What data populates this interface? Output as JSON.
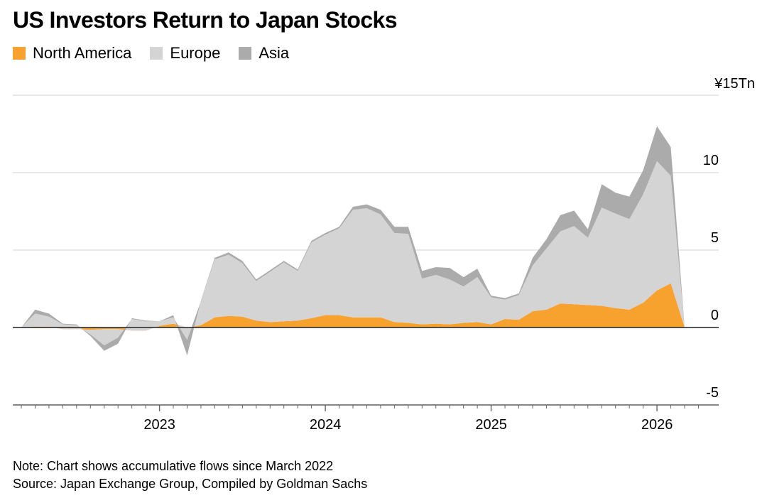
{
  "title": "US Investors Return to Japan Stocks",
  "footer": {
    "note": "Note: Chart shows accumulative flows since March 2022",
    "source": "Source: Japan Exchange Group, Compiled by Goldman Sachs"
  },
  "colors": {
    "north_america": "#F7A12F",
    "europe": "#D4D4D4",
    "asia": "#ABABAB"
  },
  "chart_data": {
    "type": "area",
    "stacked": true,
    "title": "US Investors Return to Japan Stocks",
    "y_unit_label": "¥15Tn",
    "ylim": [
      -5,
      15
    ],
    "y_ticks": [
      {
        "value": 15,
        "label": "¥15Tn"
      },
      {
        "value": 10,
        "label": "10"
      },
      {
        "value": 5,
        "label": "5"
      },
      {
        "value": 0,
        "label": "0"
      },
      {
        "value": -5,
        "label": "-5"
      }
    ],
    "xlim": [
      "2022-03",
      "2026-04"
    ],
    "x_tick_labels": [
      "2023",
      "2024",
      "2025",
      "2026"
    ],
    "legend_position": "top-left",
    "grid": "horizontal",
    "x": [
      "2022-03",
      "2022-04",
      "2022-05",
      "2022-06",
      "2022-07",
      "2022-08",
      "2022-09",
      "2022-10",
      "2022-11",
      "2022-12",
      "2023-01",
      "2023-02",
      "2023-03",
      "2023-04",
      "2023-05",
      "2023-06",
      "2023-07",
      "2023-08",
      "2023-09",
      "2023-10",
      "2023-11",
      "2023-12",
      "2024-01",
      "2024-02",
      "2024-03",
      "2024-04",
      "2024-05",
      "2024-06",
      "2024-07",
      "2024-08",
      "2024-09",
      "2024-10",
      "2024-11",
      "2024-12",
      "2025-01",
      "2025-02",
      "2025-03",
      "2025-04",
      "2025-05",
      "2025-06",
      "2025-07",
      "2025-08",
      "2025-09",
      "2025-10",
      "2025-11",
      "2025-12",
      "2026-01",
      "2026-02",
      "2026-03"
    ],
    "series": [
      {
        "name": "North America",
        "color_key": "north_america",
        "values": [
          0,
          0.05,
          0.05,
          -0.1,
          -0.1,
          -0.15,
          -0.1,
          -0.1,
          -0.2,
          -0.2,
          0.1,
          0.25,
          0,
          0.15,
          0.65,
          0.75,
          0.7,
          0.45,
          0.35,
          0.4,
          0.45,
          0.6,
          0.8,
          0.8,
          0.65,
          0.65,
          0.65,
          0.35,
          0.3,
          0.2,
          0.25,
          0.2,
          0.3,
          0.35,
          0.2,
          0.55,
          0.5,
          1.05,
          1.15,
          1.55,
          1.5,
          1.45,
          1.4,
          1.25,
          1.15,
          1.6,
          2.4,
          2.85,
          0
        ]
      },
      {
        "name": "Europe",
        "color_key": "europe",
        "values": [
          0,
          0.85,
          0.65,
          0.3,
          0.25,
          -0.3,
          -1.05,
          -0.55,
          0.75,
          0.6,
          0.3,
          0.4,
          -0.8,
          1.55,
          3.75,
          3.95,
          3.45,
          2.55,
          3.25,
          3.8,
          3.2,
          4.9,
          5.2,
          5.6,
          6.95,
          7.05,
          6.65,
          5.75,
          5.75,
          2.95,
          3.15,
          2.9,
          2.35,
          2.9,
          1.75,
          1.25,
          1.6,
          2.95,
          3.95,
          4.65,
          5.05,
          4.35,
          6.35,
          6.1,
          5.85,
          7.0,
          8.35,
          6.95,
          0
        ]
      },
      {
        "name": "Asia",
        "color_key": "asia",
        "values": [
          0,
          0.25,
          0.2,
          0.05,
          0.05,
          -0.1,
          -0.35,
          -0.4,
          0.05,
          0.05,
          0,
          0.15,
          -1.0,
          0.05,
          0.1,
          0.15,
          0.15,
          0.1,
          0.1,
          0.1,
          0.1,
          0.1,
          0.1,
          0.1,
          0.2,
          0.25,
          0.3,
          0.4,
          0.45,
          0.5,
          0.5,
          0.75,
          0.6,
          0.55,
          0.1,
          0.1,
          0.1,
          0.5,
          0.6,
          1.05,
          1.0,
          0.55,
          1.5,
          1.35,
          1.45,
          1.55,
          2.25,
          1.85,
          0
        ]
      }
    ]
  }
}
